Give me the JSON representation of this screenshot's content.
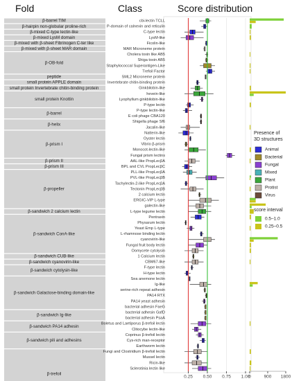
{
  "headers": {
    "fold": "Fold",
    "class": "Class",
    "score": "Score distribution"
  },
  "legend": {
    "presence_title": "Presence of\n3D structures",
    "presence": [
      {
        "label": "Animal",
        "color": "#2b2bd6"
      },
      {
        "label": "Bacterial",
        "color": "#a08a2a"
      },
      {
        "label": "Fungal",
        "color": "#8a3fd1"
      },
      {
        "label": "Mixed",
        "color": "#48b2b8"
      },
      {
        "label": "Plant",
        "color": "#3aa63a"
      },
      {
        "label": "Protist",
        "color": "#bdb0a8"
      },
      {
        "label": "Virus",
        "color": "#6b4a3a"
      }
    ],
    "score_title": "score interval",
    "score": [
      {
        "label": "0.5–1.0",
        "color": "#7fd13a"
      },
      {
        "label": "0.25–0.5",
        "color": "#c9c41a"
      }
    ]
  },
  "chart_data": {
    "type": "box",
    "title": "",
    "xlabel": "",
    "ylabel": "",
    "xlim": [
      0,
      1
    ],
    "x_ticks": [
      "0.25",
      "0.50",
      "0.75",
      "1.00"
    ],
    "x_tick_values": [
      0.25,
      0.5,
      0.75,
      1.0
    ],
    "ref_lines": [
      {
        "value": 0.25,
        "color": "#e03a3a"
      },
      {
        "value": 0.5,
        "color": "#3ac03a"
      }
    ],
    "bar_axis_ticks": [
      "0",
      "900",
      "1800"
    ],
    "bar_axis_max": 1800,
    "folds": [
      {
        "label": "β-barrel TIM",
        "start": 0,
        "end": 0
      },
      {
        "label": "β-hairpin non-globular proline-rich",
        "start": 1,
        "end": 1
      },
      {
        "label": "β-mixed C-type lectin-like",
        "start": 2,
        "end": 2
      },
      {
        "label": "β-mixed LysM domain",
        "start": 3,
        "end": 3
      },
      {
        "label": "β-mixed with β-sheet Fibrinogen C-ter like",
        "start": 4,
        "end": 4
      },
      {
        "label": "β-mixed with β-sheet MAR domain",
        "start": 5,
        "end": 5
      },
      {
        "label": "β-OB-fold",
        "start": 6,
        "end": 9
      },
      {
        "label": "peptide",
        "start": 10,
        "end": 10
      },
      {
        "label": "small protein APPLE domain",
        "start": 11,
        "end": 11
      },
      {
        "label": "small protein Invertebrate chitin-binding protein",
        "start": 12,
        "end": 12
      },
      {
        "label": "small protein Knottin",
        "start": 13,
        "end": 15
      },
      {
        "label": "β-barrel",
        "start": 16,
        "end": 17
      },
      {
        "label": "β-helix",
        "start": 18,
        "end": 19
      },
      {
        "label": "β-prism I",
        "start": 20,
        "end": 24
      },
      {
        "label": "β-prism II",
        "start": 25,
        "end": 25
      },
      {
        "label": "β-prism III",
        "start": 26,
        "end": 26
      },
      {
        "label": "β-propeller",
        "start": 27,
        "end": 33
      },
      {
        "label": "β-sandwich 2 calcium lectin",
        "start": 34,
        "end": 34
      },
      {
        "label": "β-sandwich ConA-like",
        "start": 35,
        "end": 41
      },
      {
        "label": "β-sandwich CUB-like",
        "start": 42,
        "end": 42
      },
      {
        "label": "β-sandwich cyanovirin-like",
        "start": 43,
        "end": 43
      },
      {
        "label": "β-sandwich cytolysin-like",
        "start": 44,
        "end": 45
      },
      {
        "label": "β-sandwich Galactose-binding domain-like",
        "start": 46,
        "end": 51
      },
      {
        "label": "β-sandwich Ig-like",
        "start": 52,
        "end": 53
      },
      {
        "label": "β-sandwich PA14 adhesin",
        "start": 54,
        "end": 55
      },
      {
        "label": "β-sandwich pili and adhesins",
        "start": 56,
        "end": 58
      },
      {
        "label": "β-trefoil",
        "start": 59,
        "end": 67
      }
    ],
    "classes": [
      {
        "label": "cbi-lectin TCLL",
        "color": "#3aa63a",
        "box": [
          0.4,
          0.48,
          0.52,
          0.55
        ],
        "bars": [
          {
            "value": 1700,
            "color": "#7fd13a"
          },
          {
            "value": 300,
            "color": "#c9c41a"
          }
        ]
      },
      {
        "label": "P-domain of calnexin and reticulin",
        "color": "#2b2bd6",
        "box": [
          0.42,
          0.45,
          0.48,
          0.5
        ],
        "bars": [
          {
            "value": 100,
            "color": "#7fd13a"
          }
        ]
      },
      {
        "label": "C-type lectin",
        "color": "#2b2bd6",
        "box": [
          0.2,
          0.27,
          0.34,
          0.45
        ],
        "bars": [
          {
            "value": 40,
            "color": "#c9c41a"
          }
        ]
      },
      {
        "label": "LysM-like",
        "color": "#8a3fd1",
        "box": [
          0.15,
          0.22,
          0.32,
          0.45
        ],
        "bars": [
          {
            "value": 60,
            "color": "#c9c41a"
          }
        ]
      },
      {
        "label": "Ficolin-like",
        "color": "#2b2bd6",
        "box": [
          0.47,
          0.48,
          0.48,
          0.49
        ],
        "bars": []
      },
      {
        "label": "MAR Microneme protein",
        "color": "#bdb0a8",
        "box": [
          0.45,
          0.46,
          0.46,
          0.47
        ],
        "bars": []
      },
      {
        "label": "Cholera toxin like AB5",
        "color": "#a08a2a",
        "box": [
          0.47,
          0.49,
          0.5,
          0.51
        ],
        "bars": [
          {
            "value": 30,
            "color": "#c9c41a"
          }
        ]
      },
      {
        "label": "Shiga toxin AB5",
        "color": "#a08a2a",
        "box": [
          0.47,
          0.48,
          0.5,
          0.51
        ],
        "bars": []
      },
      {
        "label": "Staphylococcal Superantigen-Like",
        "color": "#a08a2a",
        "box": [
          0.4,
          0.45,
          0.55,
          0.6
        ],
        "bars": [
          {
            "value": 40,
            "color": "#c9c41a"
          }
        ]
      },
      {
        "label": "Trefoil Factor",
        "color": "#2b2bd6",
        "box": [
          0.48,
          0.5,
          0.56,
          0.6
        ],
        "bars": [
          {
            "value": 40,
            "color": "#c9c41a"
          }
        ]
      },
      {
        "label": "SML2 Microneme protein",
        "color": "#bdb0a8",
        "box": [
          0.47,
          0.47,
          0.48,
          0.48
        ],
        "bars": []
      },
      {
        "label": "Invertebrate chitin-binding protein",
        "color": "#2b2bd6",
        "box": [
          0.35,
          0.36,
          0.38,
          0.4
        ],
        "bars": []
      },
      {
        "label": "Ginkbilobin-like",
        "color": "#3aa63a",
        "box": [
          0.28,
          0.34,
          0.4,
          0.44
        ],
        "bars": [
          {
            "value": 60,
            "color": "#c9c41a"
          }
        ]
      },
      {
        "label": "hevein-like",
        "color": "#3aa63a",
        "box": [
          0.2,
          0.32,
          0.47,
          0.58
        ],
        "bars": [
          {
            "value": 1800,
            "color": "#c9c41a"
          },
          {
            "value": 200,
            "color": "#7fd13a"
          }
        ]
      },
      {
        "label": "Lyophyllum ginkbilobin-like",
        "color": "#8a3fd1",
        "box": [
          0.4,
          0.42,
          0.44,
          0.45
        ],
        "bars": []
      },
      {
        "label": "P-type lectin",
        "color": "#2b2bd6",
        "box": [
          0.22,
          0.24,
          0.28,
          0.32
        ],
        "bars": [
          {
            "value": 60,
            "color": "#c9c41a"
          }
        ]
      },
      {
        "label": "P-type lectin-like",
        "color": "#2b2bd6",
        "box": [
          0.18,
          0.21,
          0.24,
          0.3
        ],
        "bars": []
      },
      {
        "label": "E coli phage CBA120",
        "color": "#6b4a3a",
        "box": [
          0.4,
          0.41,
          0.42,
          0.43
        ],
        "bars": []
      },
      {
        "label": "Shigella phage Sf6",
        "color": "#6b4a3a",
        "box": [
          0.4,
          0.41,
          0.42,
          0.43
        ],
        "bars": []
      },
      {
        "label": "Jacalin-like",
        "color": "#bdb0a8",
        "box": [
          0.15,
          0.22,
          0.27,
          0.4
        ],
        "bars": [
          {
            "value": 40,
            "color": "#c9c41a"
          }
        ]
      },
      {
        "label": "Natterin-like",
        "color": "#2b2bd6",
        "box": [
          0.12,
          0.18,
          0.26,
          0.32
        ],
        "bars": []
      },
      {
        "label": "Oyster lectin",
        "color": "#2b2bd6",
        "box": [
          0.26,
          0.27,
          0.28,
          0.29
        ],
        "bars": []
      },
      {
        "label": "Vibrio β-prism",
        "color": "#a08a2a",
        "box": [
          0.2,
          0.21,
          0.23,
          0.25
        ],
        "bars": []
      },
      {
        "label": "Monocot-lectin-like",
        "color": "#3aa63a",
        "box": [
          0.2,
          0.26,
          0.38,
          0.48
        ],
        "bars": [
          {
            "value": 60,
            "color": "#c9c41a"
          }
        ]
      },
      {
        "label": "Fungal prism lectins",
        "color": "#8a3fd1",
        "box": [
          0.74,
          0.76,
          0.82,
          0.86
        ],
        "bars": []
      },
      {
        "label": "AAL-like PropLecβA",
        "color": "#bdb0a8",
        "box": [
          0.2,
          0.25,
          0.34,
          0.4
        ],
        "bars": [
          {
            "value": 40,
            "color": "#c9c41a"
          }
        ]
      },
      {
        "label": "BPL and CVL PropLecβC",
        "color": "#2b2bd6",
        "box": [
          0.17,
          0.2,
          0.26,
          0.3
        ],
        "bars": []
      },
      {
        "label": "PLL-like PropLecβA",
        "color": "#48b2b8",
        "box": [
          0.18,
          0.23,
          0.3,
          0.36
        ],
        "bars": []
      },
      {
        "label": "PVL-like PropLecβB",
        "color": "#8a3fd1",
        "box": [
          0.35,
          0.48,
          0.62,
          0.72
        ],
        "bars": [
          {
            "value": 60,
            "color": "#7fd13a"
          },
          {
            "value": 20,
            "color": "#c9c41a"
          }
        ]
      },
      {
        "label": "Tachylectin-2-like PropLecβA",
        "color": "#2b2bd6",
        "box": [
          0.2,
          0.21,
          0.23,
          0.25
        ],
        "bars": []
      },
      {
        "label": "Tectonin PropLecβB",
        "color": "#bdb0a8",
        "box": [
          0.15,
          0.27,
          0.35,
          0.45
        ],
        "bars": [
          {
            "value": 40,
            "color": "#c9c41a"
          }
        ]
      },
      {
        "label": "2 calcium lectin",
        "color": "#a08a2a",
        "box": [
          0.38,
          0.39,
          0.4,
          0.42
        ],
        "bars": []
      },
      {
        "label": "ERGIC-VIP L-type",
        "color": "#bdb0a8",
        "box": [
          0.25,
          0.4,
          0.55,
          0.65
        ],
        "bars": [
          {
            "value": 300,
            "color": "#7fd13a"
          },
          {
            "value": 300,
            "color": "#c9c41a"
          }
        ]
      },
      {
        "label": "galectin-like",
        "color": "#bdb0a8",
        "box": [
          0.25,
          0.35,
          0.45,
          0.55
        ],
        "bars": [
          {
            "value": 800,
            "color": "#c9c41a"
          },
          {
            "value": 100,
            "color": "#7fd13a"
          }
        ]
      },
      {
        "label": "L-type legume lectin",
        "color": "#3aa63a",
        "box": [
          0.25,
          0.38,
          0.48,
          0.55
        ],
        "bars": [
          {
            "value": 200,
            "color": "#c9c41a"
          }
        ]
      },
      {
        "label": "Pentraxin",
        "color": "#2b2bd6",
        "box": [
          0.28,
          0.34,
          0.42,
          0.46
        ],
        "bars": [
          {
            "value": 60,
            "color": "#c9c41a"
          }
        ]
      },
      {
        "label": "Physarum lectin",
        "color": "#bdb0a8",
        "box": [
          0.2,
          0.21,
          0.22,
          0.23
        ],
        "bars": []
      },
      {
        "label": "Yeast Emp L-type",
        "color": "#8a3fd1",
        "box": [
          0.23,
          0.27,
          0.3,
          0.33
        ],
        "bars": [
          {
            "value": 40,
            "color": "#c9c41a"
          }
        ]
      },
      {
        "label": "L-rhamnose binding lectin",
        "color": "#2b2bd6",
        "box": [
          0.4,
          0.41,
          0.43,
          0.45
        ],
        "bars": []
      },
      {
        "label": "cyanovirin-like",
        "color": "#bdb0a8",
        "box": [
          0.25,
          0.45,
          0.55,
          0.6
        ],
        "bars": [
          {
            "value": 1400,
            "color": "#7fd13a"
          },
          {
            "value": 200,
            "color": "#c9c41a"
          }
        ]
      },
      {
        "label": "Fungal fruit body lectin",
        "color": "#8a3fd1",
        "box": [
          0.25,
          0.35,
          0.45,
          0.5
        ],
        "bars": [
          {
            "value": 60,
            "color": "#c9c41a"
          }
        ]
      },
      {
        "label": "Oomycete cytolysin",
        "color": "#bdb0a8",
        "box": [
          0.2,
          0.3,
          0.38,
          0.45
        ],
        "bars": [
          {
            "value": 60,
            "color": "#c9c41a"
          }
        ]
      },
      {
        "label": "1 Calcium lectin",
        "color": "#a08a2a",
        "box": [
          0.3,
          0.31,
          0.32,
          0.33
        ],
        "bars": []
      },
      {
        "label": "CBM67-like",
        "color": "#bdb0a8",
        "box": [
          0.2,
          0.3,
          0.38,
          0.45
        ],
        "bars": [
          {
            "value": 40,
            "color": "#c9c41a"
          }
        ]
      },
      {
        "label": "F-type lectin",
        "color": "#2b2bd6",
        "box": [
          0.28,
          0.29,
          0.3,
          0.32
        ],
        "bars": []
      },
      {
        "label": "H-type lectin",
        "color": "#2b2bd6",
        "box": [
          0.2,
          0.22,
          0.25,
          0.28
        ],
        "bars": []
      },
      {
        "label": "Sea anemone lectin",
        "color": "#2b2bd6",
        "box": [
          0.26,
          0.26,
          0.27,
          0.27
        ],
        "bars": []
      },
      {
        "label": "Ig-like",
        "color": "#bdb0a8",
        "box": [
          0.27,
          0.4,
          0.5,
          0.55
        ],
        "bars": [
          {
            "value": 400,
            "color": "#c9c41a"
          },
          {
            "value": 150,
            "color": "#7fd13a"
          }
        ]
      },
      {
        "label": "serine-rich repeat adhesin",
        "color": "#a08a2a",
        "box": [
          0.45,
          0.46,
          0.47,
          0.48
        ],
        "bars": []
      },
      {
        "label": "PA14 RTX",
        "color": "#a08a2a",
        "box": [
          0.47,
          0.48,
          0.49,
          0.5
        ],
        "bars": []
      },
      {
        "label": "PA14 yeast adhesin",
        "color": "#8a3fd1",
        "box": [
          0.43,
          0.45,
          0.47,
          0.48
        ],
        "bars": []
      },
      {
        "label": "bacterial adhesin FaeG",
        "color": "#a08a2a",
        "box": [
          0.46,
          0.47,
          0.47,
          0.48
        ],
        "bars": []
      },
      {
        "label": "bacterial adhesin GafD",
        "color": "#a08a2a",
        "box": [
          0.46,
          0.47,
          0.47,
          0.48
        ],
        "bars": []
      },
      {
        "label": "bacterial adhesin PsaA",
        "color": "#a08a2a",
        "box": [
          0.46,
          0.47,
          0.47,
          0.48
        ],
        "bars": []
      },
      {
        "label": "Boletus and Laetiporus β-trefoil lectin",
        "color": "#8a3fd1",
        "box": [
          0.28,
          0.38,
          0.48,
          0.55
        ],
        "bars": [
          {
            "value": 40,
            "color": "#c9c41a"
          }
        ]
      },
      {
        "label": "Clitocybe lectin-like",
        "color": "#8a3fd1",
        "box": [
          0.3,
          0.33,
          0.38,
          0.42
        ],
        "bars": []
      },
      {
        "label": "Coprinus β-trefoil lectin",
        "color": "#8a3fd1",
        "box": [
          0.35,
          0.38,
          0.42,
          0.45
        ],
        "bars": []
      },
      {
        "label": "Cys-rich man-receptor",
        "color": "#2b2bd6",
        "box": [
          0.4,
          0.43,
          0.46,
          0.48
        ],
        "bars": []
      },
      {
        "label": "Earthworm lectin",
        "color": "#2b2bd6",
        "box": [
          0.36,
          0.37,
          0.38,
          0.39
        ],
        "bars": []
      },
      {
        "label": "Fungi and Clostridium β-trefoil lectin",
        "color": "#bdb0a8",
        "box": [
          0.2,
          0.32,
          0.42,
          0.5
        ],
        "bars": [
          {
            "value": 60,
            "color": "#c9c41a"
          }
        ]
      },
      {
        "label": "Mussel lectin",
        "color": "#2b2bd6",
        "box": [
          0.34,
          0.36,
          0.38,
          0.4
        ],
        "bars": []
      },
      {
        "label": "Ricin-like",
        "color": "#bdb0a8",
        "box": [
          0.2,
          0.3,
          0.42,
          0.5
        ],
        "bars": [
          {
            "value": 80,
            "color": "#c9c41a"
          }
        ]
      },
      {
        "label": "Sclerotinia lectin like",
        "color": "#8a3fd1",
        "box": [
          0.3,
          0.38,
          0.5,
          0.55
        ],
        "bars": [
          {
            "value": 40,
            "color": "#c9c41a"
          }
        ]
      }
    ]
  }
}
